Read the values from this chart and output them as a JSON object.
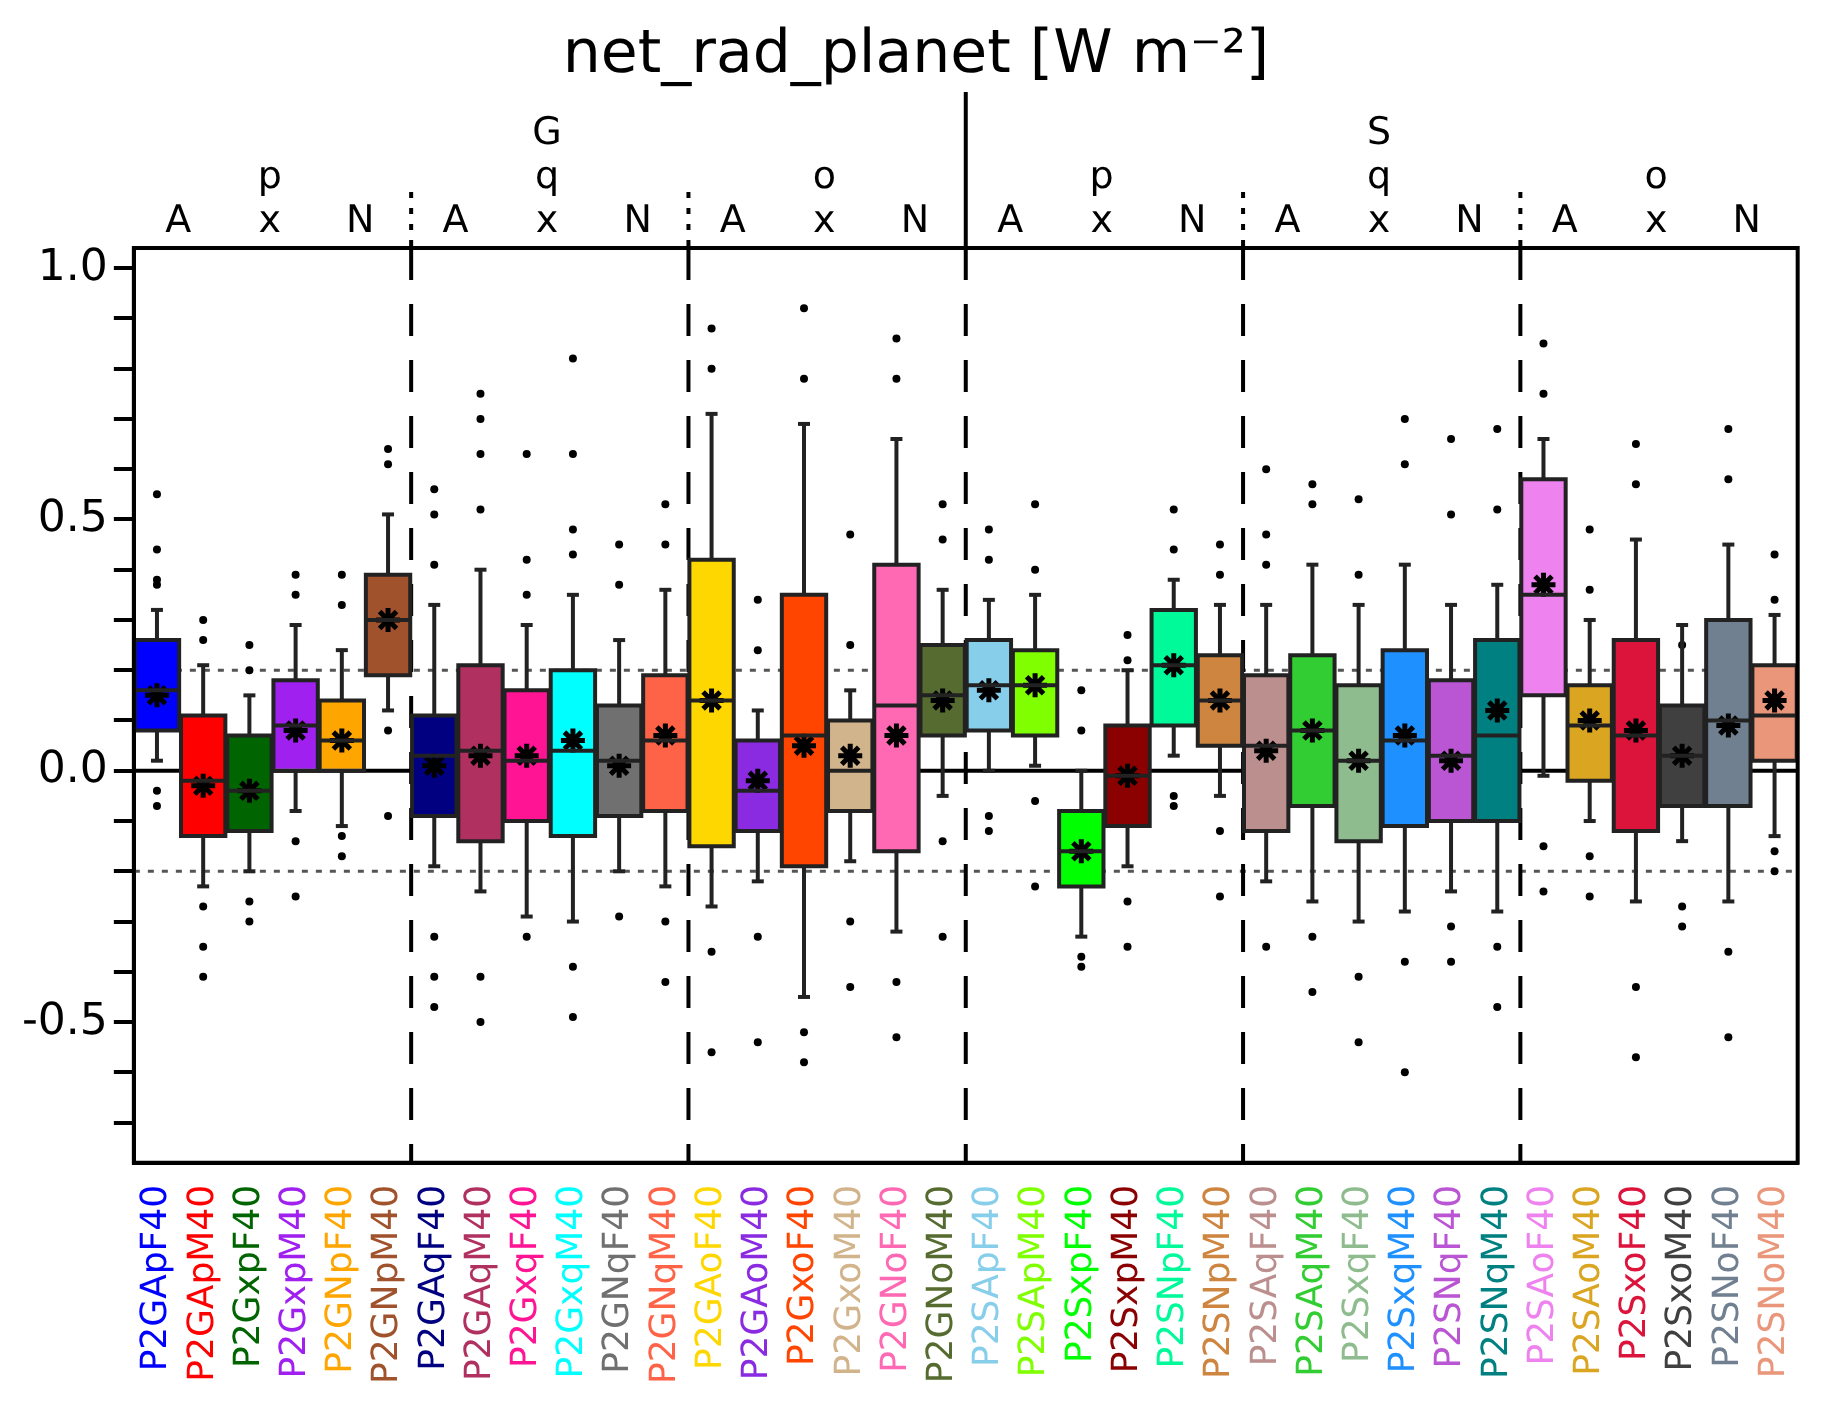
{
  "chart_data": {
    "type": "box",
    "title": "net_rad_planet [W m⁻²]",
    "categories": [
      "P2GApF40",
      "P2GApM40",
      "P2GxpF40",
      "P2GxpM40",
      "P2GNpF40",
      "P2GNpM40",
      "P2GAqF40",
      "P2GAqM40",
      "P2GxqF40",
      "P2GxqM40",
      "P2GNqF40",
      "P2GNqM40",
      "P2GAoF40",
      "P2GAoM40",
      "P2GxoF40",
      "P2GxoM40",
      "P2GNoF40",
      "P2GNoM40",
      "P2SApF40",
      "P2SApM40",
      "P2SxpF40",
      "P2SxpM40",
      "P2SNpF40",
      "P2SNpM40",
      "P2SAqF40",
      "P2SAqM40",
      "P2SxqF40",
      "P2SxqM40",
      "P2SNqF40",
      "P2SNqM40",
      "P2SAoF40",
      "P2SAoM40",
      "P2SxoF40",
      "P2SxoM40",
      "P2SNoF40",
      "P2SNoM40"
    ],
    "colors": [
      "#0000ff",
      "#ff0000",
      "#006400",
      "#a020f0",
      "#ffa500",
      "#a0522d",
      "#000080",
      "#b03060",
      "#ff1493",
      "#00ffff",
      "#707070",
      "#ff6347",
      "#ffd700",
      "#8a2be2",
      "#ff4500",
      "#d2b48c",
      "#ff69b4",
      "#556b2f",
      "#87ceeb",
      "#7fff00",
      "#00ff00",
      "#8b0000",
      "#00fa9a",
      "#cd853f",
      "#bc8f8f",
      "#32cd32",
      "#8fbc8f",
      "#1e90ff",
      "#ba55d3",
      "#008080",
      "#ee82ee",
      "#daa520",
      "#dc143c",
      "#404040",
      "#708090",
      "#e9967a"
    ],
    "boxes": [
      {
        "low": 0.02,
        "q1": 0.08,
        "median": 0.16,
        "q3": 0.26,
        "high": 0.32,
        "mean": 0.15,
        "outliers": [
          0.55,
          0.44,
          0.38,
          0.37,
          -0.04,
          -0.07
        ]
      },
      {
        "low": -0.23,
        "q1": -0.13,
        "median": -0.02,
        "q3": 0.11,
        "high": 0.21,
        "mean": -0.03,
        "outliers": [
          0.3,
          0.26,
          -0.27,
          -0.35,
          -0.41
        ]
      },
      {
        "low": -0.2,
        "q1": -0.12,
        "median": -0.04,
        "q3": 0.07,
        "high": 0.15,
        "mean": -0.04,
        "outliers": [
          0.25,
          0.2,
          -0.26,
          -0.3
        ]
      },
      {
        "low": -0.08,
        "q1": 0,
        "median": 0.09,
        "q3": 0.18,
        "high": 0.29,
        "mean": 0.08,
        "outliers": [
          0.39,
          0.35,
          -0.14,
          -0.25
        ]
      },
      {
        "low": -0.11,
        "q1": 0,
        "median": 0.06,
        "q3": 0.14,
        "high": 0.24,
        "mean": 0.06,
        "outliers": [
          0.39,
          0.33,
          -0.13,
          -0.17
        ]
      },
      {
        "low": 0.12,
        "q1": 0.19,
        "median": 0.3,
        "q3": 0.39,
        "high": 0.51,
        "mean": 0.3,
        "outliers": [
          0.64,
          0.61,
          0.08,
          -0.09
        ]
      },
      {
        "low": -0.19,
        "q1": -0.09,
        "median": 0.03,
        "q3": 0.11,
        "high": 0.33,
        "mean": 0.01,
        "outliers": [
          0.56,
          0.51,
          0.41,
          -0.33,
          -0.41,
          -0.47
        ]
      },
      {
        "low": -0.24,
        "q1": -0.14,
        "median": 0.04,
        "q3": 0.21,
        "high": 0.4,
        "mean": 0.03,
        "outliers": [
          0.75,
          0.7,
          0.63,
          0.52,
          -0.41,
          -0.5
        ]
      },
      {
        "low": -0.29,
        "q1": -0.1,
        "median": 0.02,
        "q3": 0.16,
        "high": 0.29,
        "mean": 0.03,
        "outliers": [
          0.63,
          0.42,
          0.35,
          -0.33
        ]
      },
      {
        "low": -0.3,
        "q1": -0.13,
        "median": 0.04,
        "q3": 0.2,
        "high": 0.35,
        "mean": 0.06,
        "outliers": [
          0.82,
          0.63,
          0.48,
          0.43,
          -0.39,
          -0.49
        ]
      },
      {
        "low": -0.2,
        "q1": -0.09,
        "median": 0.02,
        "q3": 0.13,
        "high": 0.26,
        "mean": 0.01,
        "outliers": [
          0.45,
          0.37,
          -0.29
        ]
      },
      {
        "low": -0.23,
        "q1": -0.08,
        "median": 0.06,
        "q3": 0.19,
        "high": 0.36,
        "mean": 0.07,
        "outliers": [
          0.53,
          0.45,
          -0.3,
          -0.42
        ]
      },
      {
        "low": -0.27,
        "q1": -0.15,
        "median": 0.14,
        "q3": 0.42,
        "high": 0.71,
        "mean": 0.14,
        "outliers": [
          0.88,
          0.8,
          -0.36,
          -0.56
        ]
      },
      {
        "low": -0.22,
        "q1": -0.12,
        "median": -0.04,
        "q3": 0.06,
        "high": 0.12,
        "mean": -0.02,
        "outliers": [
          0.34,
          0.24,
          -0.33,
          -0.54
        ]
      },
      {
        "low": -0.45,
        "q1": -0.19,
        "median": 0.07,
        "q3": 0.35,
        "high": 0.69,
        "mean": 0.05,
        "outliers": [
          0.92,
          0.78,
          -0.52,
          -0.58
        ]
      },
      {
        "low": -0.18,
        "q1": -0.08,
        "median": 0,
        "q3": 0.1,
        "high": 0.16,
        "mean": 0.03,
        "outliers": [
          0.47,
          0.25,
          -0.3,
          -0.43
        ]
      },
      {
        "low": -0.32,
        "q1": -0.16,
        "median": 0.13,
        "q3": 0.41,
        "high": 0.66,
        "mean": 0.07,
        "outliers": [
          0.86,
          0.78,
          -0.42,
          -0.53
        ]
      },
      {
        "low": -0.05,
        "q1": 0.07,
        "median": 0.15,
        "q3": 0.25,
        "high": 0.36,
        "mean": 0.14,
        "outliers": [
          0.53,
          0.46,
          -0.14,
          -0.33
        ]
      },
      {
        "low": 0,
        "q1": 0.08,
        "median": 0.17,
        "q3": 0.26,
        "high": 0.34,
        "mean": 0.16,
        "outliers": [
          0.48,
          0.42,
          -0.09,
          -0.12
        ]
      },
      {
        "low": 0.01,
        "q1": 0.07,
        "median": 0.17,
        "q3": 0.24,
        "high": 0.35,
        "mean": 0.17,
        "outliers": [
          0.53,
          0.4,
          -0.06,
          -0.23
        ]
      },
      {
        "low": -0.33,
        "q1": -0.23,
        "median": -0.16,
        "q3": -0.08,
        "high": 0,
        "mean": -0.16,
        "outliers": [
          0.16,
          0.08,
          -0.37,
          -0.39
        ]
      },
      {
        "low": -0.19,
        "q1": -0.11,
        "median": -0.01,
        "q3": 0.09,
        "high": 0.2,
        "mean": -0.01,
        "outliers": [
          0.27,
          0.22,
          -0.26,
          -0.35
        ]
      },
      {
        "low": 0.03,
        "q1": 0.09,
        "median": 0.21,
        "q3": 0.32,
        "high": 0.38,
        "mean": 0.21,
        "outliers": [
          0.52,
          0.44,
          -0.05,
          -0.07
        ]
      },
      {
        "low": -0.05,
        "q1": 0.05,
        "median": 0.14,
        "q3": 0.23,
        "high": 0.33,
        "mean": 0.14,
        "outliers": [
          0.45,
          0.39,
          -0.12,
          -0.25
        ]
      },
      {
        "low": -0.22,
        "q1": -0.12,
        "median": 0.05,
        "q3": 0.19,
        "high": 0.33,
        "mean": 0.04,
        "outliers": [
          0.6,
          0.47,
          0.41,
          -0.35
        ]
      },
      {
        "low": -0.26,
        "q1": -0.07,
        "median": 0.08,
        "q3": 0.23,
        "high": 0.41,
        "mean": 0.08,
        "outliers": [
          0.57,
          0.53,
          -0.33,
          -0.44
        ]
      },
      {
        "low": -0.3,
        "q1": -0.14,
        "median": 0.02,
        "q3": 0.17,
        "high": 0.33,
        "mean": 0.02,
        "outliers": [
          0.54,
          0.39,
          -0.41,
          -0.54
        ]
      },
      {
        "low": -0.28,
        "q1": -0.11,
        "median": 0.06,
        "q3": 0.24,
        "high": 0.41,
        "mean": 0.07,
        "outliers": [
          0.7,
          0.61,
          -0.38,
          -0.6
        ]
      },
      {
        "low": -0.24,
        "q1": -0.1,
        "median": 0.03,
        "q3": 0.18,
        "high": 0.33,
        "mean": 0.02,
        "outliers": [
          0.66,
          0.51,
          -0.31,
          -0.38
        ]
      },
      {
        "low": -0.28,
        "q1": -0.1,
        "median": 0.07,
        "q3": 0.26,
        "high": 0.37,
        "mean": 0.12,
        "outliers": [
          0.68,
          0.52,
          -0.35,
          -0.47
        ]
      },
      {
        "low": -0.01,
        "q1": 0.15,
        "median": 0.35,
        "q3": 0.58,
        "high": 0.66,
        "mean": 0.37,
        "outliers": [
          0.85,
          0.75,
          -0.15,
          -0.24
        ]
      },
      {
        "low": -0.1,
        "q1": -0.02,
        "median": 0.09,
        "q3": 0.17,
        "high": 0.3,
        "mean": 0.1,
        "outliers": [
          0.48,
          0.36,
          -0.17,
          -0.25
        ]
      },
      {
        "low": -0.26,
        "q1": -0.12,
        "median": 0.07,
        "q3": 0.26,
        "high": 0.46,
        "mean": 0.08,
        "outliers": [
          0.65,
          0.57,
          -0.43,
          -0.57
        ]
      },
      {
        "low": -0.14,
        "q1": -0.07,
        "median": 0.03,
        "q3": 0.13,
        "high": 0.29,
        "mean": 0.03,
        "outliers": [
          0.25,
          -0.27,
          -0.31
        ]
      },
      {
        "low": -0.26,
        "q1": -0.07,
        "median": 0.1,
        "q3": 0.3,
        "high": 0.45,
        "mean": 0.09,
        "outliers": [
          0.68,
          0.58,
          -0.36,
          -0.53
        ]
      },
      {
        "low": -0.13,
        "q1": 0.02,
        "median": 0.11,
        "q3": 0.21,
        "high": 0.31,
        "mean": 0.14,
        "outliers": [
          0.43,
          0.34,
          -0.16,
          -0.2
        ]
      }
    ],
    "ylim": [
      -0.78,
      1.04
    ],
    "yticks": [
      {
        "value": -0.7,
        "label": null
      },
      {
        "value": -0.6,
        "label": null
      },
      {
        "value": -0.5,
        "label": "-0.5"
      },
      {
        "value": -0.4,
        "label": null
      },
      {
        "value": -0.3,
        "label": null
      },
      {
        "value": -0.2,
        "label": null
      },
      {
        "value": -0.1,
        "label": null
      },
      {
        "value": 0,
        "label": "0.0"
      },
      {
        "value": 0.1,
        "label": null
      },
      {
        "value": 0.2,
        "label": null
      },
      {
        "value": 0.3,
        "label": null
      },
      {
        "value": 0.4,
        "label": null
      },
      {
        "value": 0.5,
        "label": "0.5"
      },
      {
        "value": 0.6,
        "label": null
      },
      {
        "value": 0.7,
        "label": null
      },
      {
        "value": 0.8,
        "label": null
      },
      {
        "value": 0.9,
        "label": null
      },
      {
        "value": 1,
        "label": "1.0"
      }
    ],
    "ref_lines": [
      {
        "axis": "y",
        "value": 0,
        "line_style": "solid"
      },
      {
        "axis": "y",
        "value": 0.2,
        "line_style": "dotted"
      },
      {
        "axis": "y",
        "value": -0.2,
        "line_style": "dotted"
      }
    ],
    "annotations": [
      "A",
      "x",
      "N",
      "A",
      "x",
      "N",
      "A",
      "x",
      "N",
      "A",
      "x",
      "N",
      "A",
      "x",
      "N",
      "A",
      "x",
      "N",
      "p",
      "q",
      "o",
      "p",
      "q",
      "o",
      "G",
      "S"
    ],
    "marker": "star",
    "grid": false,
    "legend": false
  }
}
